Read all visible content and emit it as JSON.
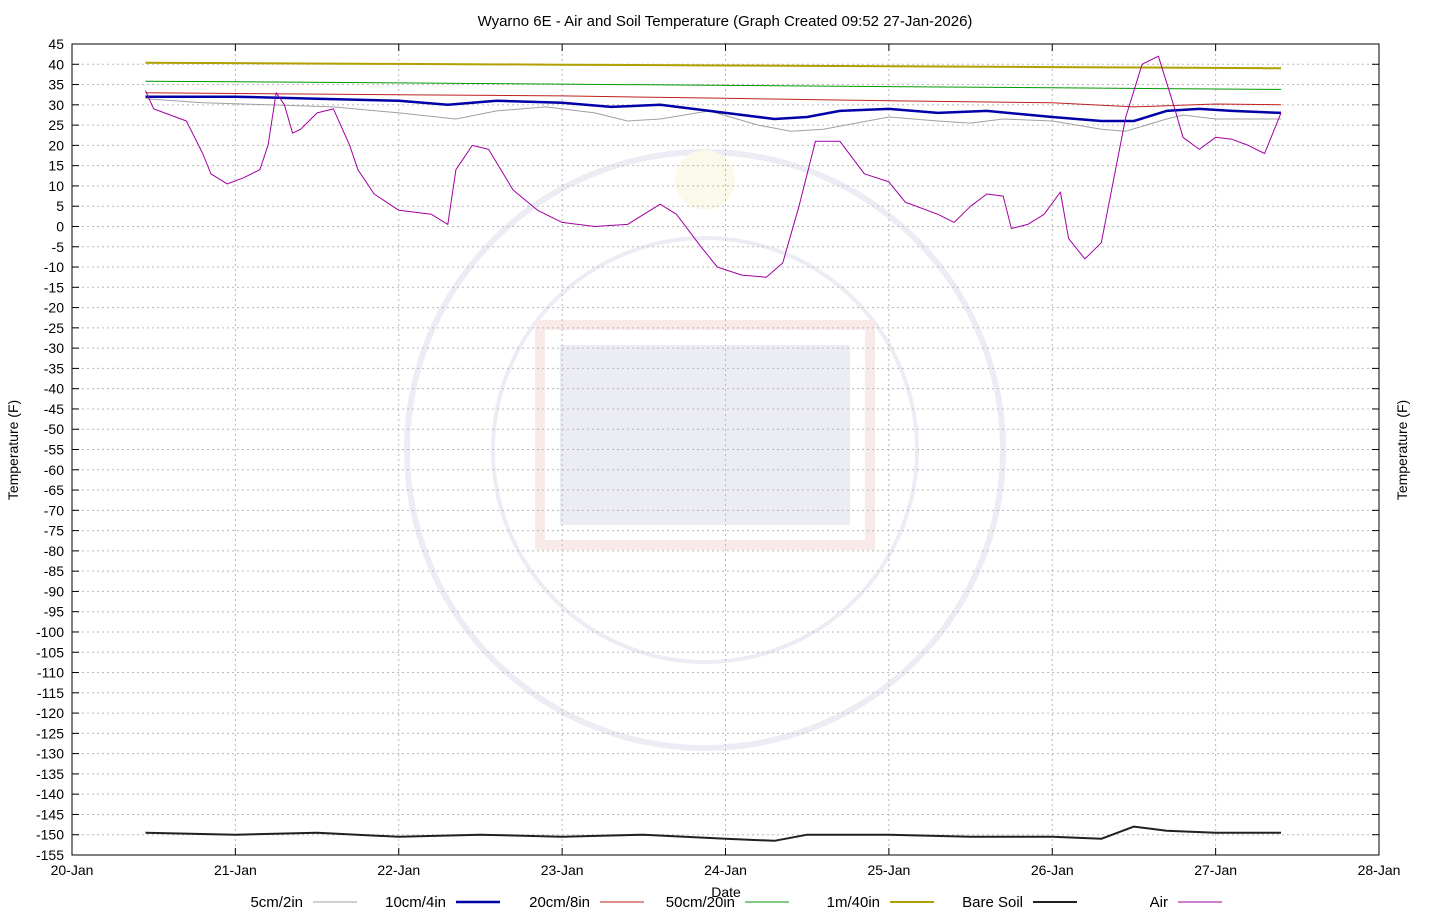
{
  "chart_data": {
    "type": "line",
    "title": "Wyarno 6E - Air and Soil Temperature (Graph Created 09:52 27-Jan-2026)",
    "xlabel": "Date",
    "ylabel": "Temperature (F)",
    "y2label": "Temperature (F)",
    "xlim": [
      20,
      28
    ],
    "ylim": [
      -155,
      45
    ],
    "y_ticks": [
      45,
      40,
      35,
      30,
      25,
      20,
      15,
      10,
      5,
      0,
      -5,
      -10,
      -15,
      -20,
      -25,
      -30,
      -35,
      -40,
      -45,
      -50,
      -55,
      -60,
      -65,
      -70,
      -75,
      -80,
      -85,
      -90,
      -95,
      -100,
      -105,
      -110,
      -115,
      -120,
      -125,
      -130,
      -135,
      -140,
      -145,
      -150,
      -155
    ],
    "x_ticks": [
      {
        "value": 20,
        "label": "20-Jan"
      },
      {
        "value": 21,
        "label": "21-Jan"
      },
      {
        "value": 22,
        "label": "22-Jan"
      },
      {
        "value": 23,
        "label": "23-Jan"
      },
      {
        "value": 24,
        "label": "24-Jan"
      },
      {
        "value": 25,
        "label": "25-Jan"
      },
      {
        "value": 26,
        "label": "26-Jan"
      },
      {
        "value": 27,
        "label": "27-Jan"
      },
      {
        "value": 28,
        "label": "28-Jan"
      }
    ],
    "grid": true,
    "legend_position": "bottom",
    "series": [
      {
        "name": "5cm/2in",
        "color": "#a0a0a0",
        "width": 1,
        "x": [
          20.45,
          20.8,
          21.2,
          21.6,
          22.0,
          22.35,
          22.6,
          22.9,
          23.2,
          23.4,
          23.6,
          23.9,
          24.2,
          24.4,
          24.6,
          25.0,
          25.3,
          25.5,
          25.7,
          26.0,
          26.3,
          26.45,
          26.7,
          26.8,
          27.0,
          27.4
        ],
        "y": [
          31.5,
          30.5,
          30.0,
          29.5,
          28.0,
          26.5,
          28.5,
          29.5,
          28.0,
          26.0,
          26.5,
          28.5,
          25.0,
          23.5,
          24.0,
          27.0,
          26.0,
          25.5,
          26.5,
          26.0,
          24.0,
          23.5,
          26.5,
          27.5,
          26.5,
          26.5
        ]
      },
      {
        "name": "10cm/4in",
        "color": "#0000a8",
        "width": 2.5,
        "x": [
          20.45,
          21.0,
          21.5,
          22.0,
          22.3,
          22.6,
          23.0,
          23.3,
          23.6,
          24.0,
          24.3,
          24.5,
          24.7,
          25.0,
          25.3,
          25.6,
          26.0,
          26.3,
          26.5,
          26.7,
          26.9,
          27.1,
          27.4
        ],
        "y": [
          32.0,
          32.0,
          31.5,
          31.0,
          30.0,
          31.0,
          30.5,
          29.5,
          30.0,
          28.0,
          26.5,
          27.0,
          28.5,
          29.0,
          28.0,
          28.5,
          27.0,
          26.0,
          26.0,
          28.5,
          29.0,
          28.5,
          28.0
        ]
      },
      {
        "name": "20cm/8in",
        "color": "#c02020",
        "width": 1,
        "x": [
          20.45,
          21.0,
          22.0,
          23.0,
          24.0,
          25.0,
          26.0,
          26.5,
          27.0,
          27.4
        ],
        "y": [
          33.0,
          32.8,
          32.5,
          32.2,
          31.6,
          31.0,
          30.5,
          29.5,
          30.2,
          30.0
        ]
      },
      {
        "name": "50cm/20in",
        "color": "#009a00",
        "width": 1,
        "x": [
          20.45,
          21.0,
          22.0,
          23.0,
          24.0,
          25.0,
          26.0,
          27.0,
          27.4
        ],
        "y": [
          35.8,
          35.7,
          35.4,
          35.1,
          34.8,
          34.5,
          34.2,
          33.9,
          33.8
        ]
      },
      {
        "name": "1m/40in",
        "color": "#b0a000",
        "width": 2,
        "x": [
          20.45,
          21.0,
          22.0,
          23.0,
          24.0,
          25.0,
          26.0,
          27.0,
          27.4
        ],
        "y": [
          40.4,
          40.3,
          40.1,
          39.9,
          39.7,
          39.5,
          39.3,
          39.1,
          39.0
        ]
      },
      {
        "name": "Bare Soil",
        "color": "#202020",
        "width": 2,
        "x": [
          20.45,
          21.0,
          21.5,
          22.0,
          22.5,
          23.0,
          23.5,
          24.0,
          24.3,
          24.5,
          25.0,
          25.5,
          26.0,
          26.3,
          26.5,
          26.7,
          27.0,
          27.4
        ],
        "y": [
          -149.5,
          -150.0,
          -149.5,
          -150.5,
          -150.0,
          -150.5,
          -150.0,
          -151.0,
          -151.5,
          -150.0,
          -150.0,
          -150.5,
          -150.5,
          -151.0,
          -148.0,
          -149.0,
          -149.5,
          -149.5
        ]
      },
      {
        "name": "Air",
        "color": "#a000a0",
        "width": 1,
        "x": [
          20.45,
          20.5,
          20.7,
          20.8,
          20.85,
          20.95,
          21.05,
          21.15,
          21.2,
          21.25,
          21.3,
          21.35,
          21.4,
          21.5,
          21.6,
          21.7,
          21.75,
          21.85,
          22.0,
          22.2,
          22.3,
          22.35,
          22.45,
          22.55,
          22.7,
          22.85,
          23.0,
          23.2,
          23.4,
          23.6,
          23.7,
          23.85,
          23.95,
          24.1,
          24.25,
          24.35,
          24.45,
          24.55,
          24.7,
          24.85,
          25.0,
          25.1,
          25.3,
          25.4,
          25.5,
          25.6,
          25.7,
          25.75,
          25.85,
          25.95,
          26.05,
          26.1,
          26.2,
          26.3,
          26.45,
          26.55,
          26.65,
          26.75,
          26.8,
          26.9,
          27.0,
          27.1,
          27.2,
          27.3,
          27.4
        ],
        "y": [
          33.5,
          29.0,
          26.0,
          18.0,
          13.0,
          10.5,
          12.0,
          14.0,
          20.0,
          33.0,
          30.0,
          23.0,
          24.0,
          28.0,
          29.0,
          20.0,
          14.0,
          8.0,
          4.0,
          3.0,
          0.5,
          14.0,
          20.0,
          19.0,
          9.0,
          4.0,
          1.0,
          0.0,
          0.5,
          5.5,
          3.0,
          -5.0,
          -10.0,
          -12.0,
          -12.5,
          -9.0,
          5.0,
          21.0,
          21.0,
          13.0,
          11.0,
          6.0,
          3.0,
          1.0,
          5.0,
          8.0,
          7.5,
          -0.5,
          0.5,
          3.0,
          8.5,
          -3.0,
          -8.0,
          -4.0,
          27.0,
          40.0,
          42.0,
          29.0,
          22.0,
          19.0,
          22.0,
          21.5,
          20.0,
          18.0,
          28.0
        ]
      }
    ]
  }
}
